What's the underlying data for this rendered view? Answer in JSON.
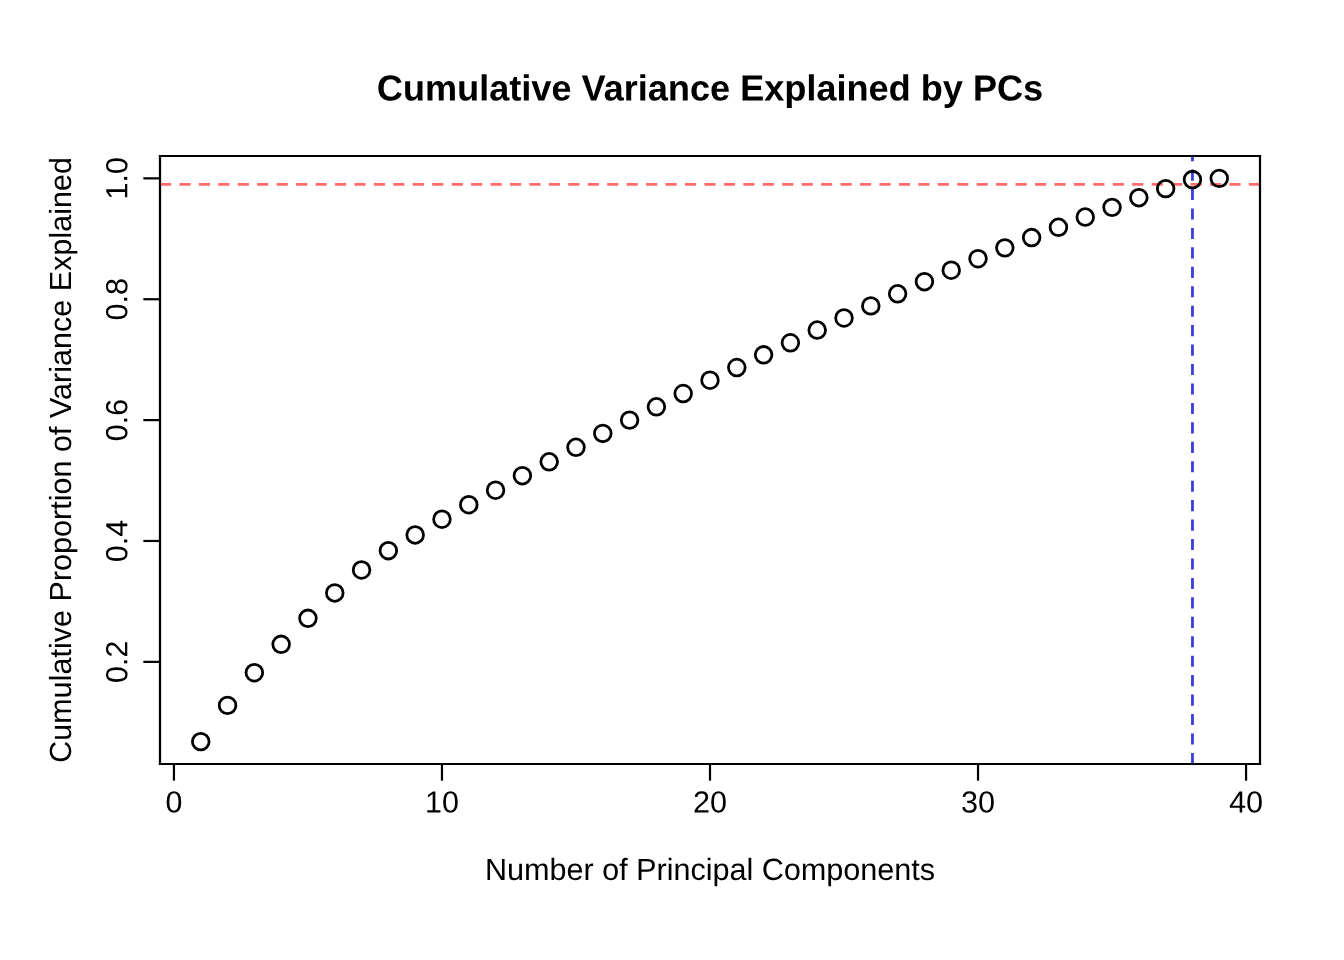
{
  "chart_data": {
    "type": "scatter",
    "title": "Cumulative Variance Explained by PCs",
    "xlabel": "Number of Principal Components",
    "ylabel": "Cumulative Proportion of Variance Explained",
    "x": [
      1,
      2,
      3,
      4,
      5,
      6,
      7,
      8,
      9,
      10,
      11,
      12,
      13,
      14,
      15,
      16,
      17,
      18,
      19,
      20,
      21,
      22,
      23,
      24,
      25,
      26,
      27,
      28,
      29,
      30,
      31,
      32,
      33,
      34,
      35,
      36,
      37,
      38,
      39
    ],
    "values": [
      0.068,
      0.128,
      0.182,
      0.229,
      0.272,
      0.314,
      0.352,
      0.384,
      0.41,
      0.436,
      0.46,
      0.484,
      0.508,
      0.531,
      0.555,
      0.578,
      0.6,
      0.622,
      0.644,
      0.666,
      0.687,
      0.708,
      0.728,
      0.749,
      0.769,
      0.789,
      0.809,
      0.829,
      0.848,
      0.867,
      0.885,
      0.902,
      0.919,
      0.936,
      0.952,
      0.968,
      0.983,
      0.998,
      1.0
    ],
    "color": "#000000",
    "marker": "circle",
    "xlim": [
      -0.52,
      40.52
    ],
    "xticks": [
      0,
      10,
      20,
      30,
      40
    ],
    "ylim": [
      0.031,
      1.037
    ],
    "yticks": [
      0.2,
      0.4,
      0.6,
      0.8,
      {
        "value": 1,
        "label": "1.0"
      }
    ],
    "ref_lines": [
      {
        "axis": "y",
        "value": 0.99,
        "color": "#ff6b6b",
        "line_style": "dashed"
      },
      {
        "axis": "x",
        "value": 38,
        "color": "#3b3bdc",
        "line_style": "dashed"
      }
    ],
    "grid": false,
    "legend": false
  }
}
